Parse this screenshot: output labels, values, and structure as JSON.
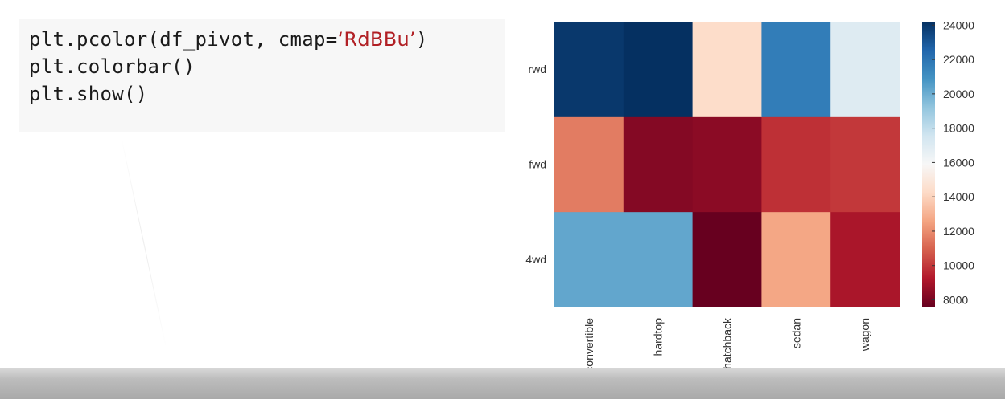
{
  "code": {
    "line1_prefix": "plt.pcolor(df_pivot, cmap=",
    "line1_string": "‘RdBBu’",
    "line1_suffix": ")",
    "line2": "plt.colorbar()",
    "line3": "plt.show()"
  },
  "chart_data": {
    "type": "heatmap",
    "title": "",
    "xlabel": "",
    "ylabel": "",
    "colormap": "RdBu",
    "x_categories": [
      "convertible",
      "hardtop",
      "hatchback",
      "sedan",
      "wagon"
    ],
    "y_categories": [
      "4wd",
      "fwd",
      "rwd"
    ],
    "values": [
      [
        20239.0,
        20239.0,
        7603.0,
        12647.0,
        9096.0
      ],
      [
        11595.0,
        8249.0,
        8396.0,
        9812.0,
        9997.0
      ],
      [
        23950.0,
        24202.0,
        14338.0,
        21712.0,
        16994.0
      ]
    ],
    "colorbar": {
      "min": 7603,
      "max": 24202,
      "ticks": [
        8000,
        10000,
        12000,
        14000,
        16000,
        18000,
        20000,
        22000,
        24000
      ],
      "tick_labels": [
        "8000",
        "10000",
        "12000",
        "14000",
        "16000",
        "18000",
        "20000",
        "22000",
        "24000"
      ]
    },
    "grid": false,
    "legend": "colorbar-right"
  }
}
